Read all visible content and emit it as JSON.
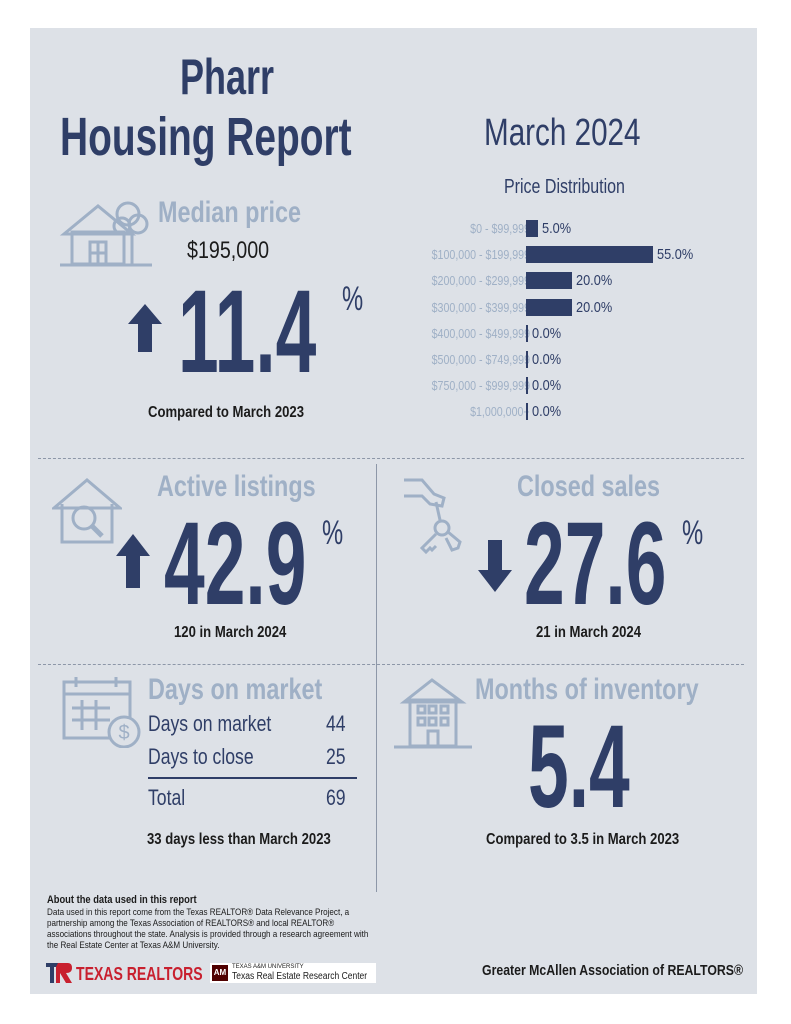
{
  "header": {
    "city": "Pharr",
    "report_title": "Housing Report",
    "period": "March 2024"
  },
  "median_price": {
    "heading": "Median price",
    "value": "$195,000",
    "change": "11.4",
    "percent_sign": "%",
    "direction": "up",
    "caption": "Compared to March 2023"
  },
  "price_distribution": {
    "title": "Price Distribution"
  },
  "chart_data": {
    "type": "bar",
    "title": "Price Distribution",
    "orientation": "horizontal",
    "categories": [
      "$0 - $99,999",
      "$100,000 - $199,999",
      "$200,000 - $299,999",
      "$300,000 - $399,999",
      "$400,000 - $499,999",
      "$500,000 - $749,999",
      "$750,000 - $999,999",
      "$1,000,000+"
    ],
    "values": [
      5.0,
      55.0,
      20.0,
      20.0,
      0.0,
      0.0,
      0.0,
      0.0
    ],
    "value_labels": [
      "5.0%",
      "55.0%",
      "20.0%",
      "20.0%",
      "0.0%",
      "0.0%",
      "0.0%",
      "0.0%"
    ],
    "bar_color": "#2f3e67"
  },
  "active_listings": {
    "heading": "Active listings",
    "change": "42.9",
    "percent_sign": "%",
    "direction": "up",
    "caption": "120 in March 2024"
  },
  "closed_sales": {
    "heading": "Closed sales",
    "change": "27.6",
    "percent_sign": "%",
    "direction": "down",
    "caption": "21 in March 2024"
  },
  "days_on_market": {
    "heading": "Days on market",
    "rows": [
      {
        "label": "Days on market",
        "value": "44"
      },
      {
        "label": "Days to close",
        "value": "25"
      }
    ],
    "total_label": "Total",
    "total_value": "69",
    "caption": "33 days less than March 2023"
  },
  "months_of_inventory": {
    "heading": "Months of inventory",
    "value": "5.4",
    "caption": "Compared to 3.5 in March 2023"
  },
  "footer": {
    "about_heading": "About the data used in this report",
    "about_text": "Data used in this report come from the Texas REALTOR® Data Relevance Project, a partnership among the Texas Association of REALTORS® and local REALTOR® associations throughout the state. Analysis is provided through a research agreement with the Real Estate Center at Texas A&M University.",
    "logo_texas_realtors": "TEXAS REALTORS",
    "tamu_line1": "TEXAS A&M UNIVERSITY",
    "tamu_line2": "Texas Real Estate Research Center",
    "association": "Greater McAllen Association of REALTORS®"
  },
  "colors": {
    "navy": "#2f3e67",
    "muted": "#9fb0c6",
    "panel": "#dde1e7",
    "logo_red": "#c8202f",
    "tamu_maroon": "#500000"
  },
  "icons": [
    "house-tree-icon",
    "up-arrow-icon",
    "house-search-icon",
    "hand-keys-icon",
    "down-arrow-icon",
    "calendar-dollar-icon",
    "apartment-building-icon"
  ]
}
